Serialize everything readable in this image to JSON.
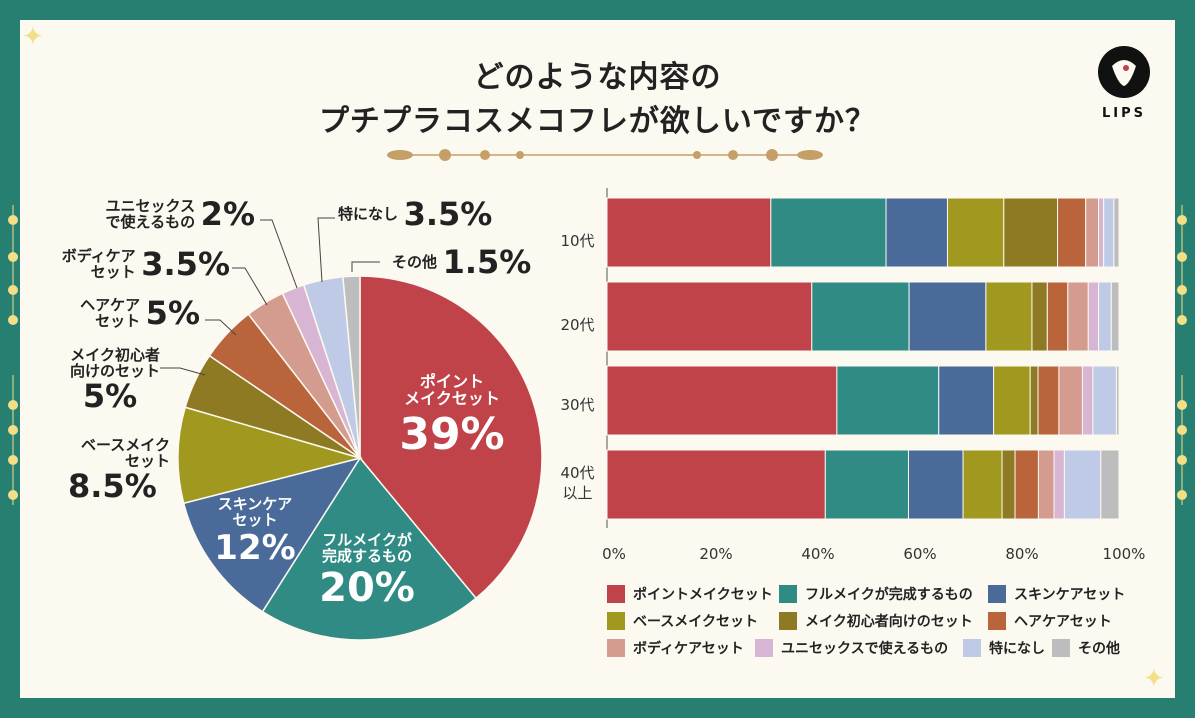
{
  "title_line1": "どのような内容の",
  "title_line2": "プチプラコスメコフレが欲しいですか？",
  "logo": "LIPS",
  "colors": {
    "point": "#c0434a",
    "full": "#2f8b84",
    "skin": "#4a6b9a",
    "base": "#a0981f",
    "beginner": "#8e7a22",
    "hair": "#b9643b",
    "body": "#d39c8f",
    "unisex": "#d8b6d3",
    "none": "#bfcbe6",
    "other": "#bdbdbd"
  },
  "pie_labels": {
    "point": {
      "l1": "ポイント",
      "l2": "メイクセット",
      "pct": "39%"
    },
    "full": {
      "l1": "フルメイクが",
      "l2": "完成するもの",
      "pct": "20%"
    },
    "skin": {
      "l1": "スキンケア",
      "l2": "セット",
      "pct": "12%"
    },
    "base": {
      "l1": "ベースメイク",
      "l2": "セット",
      "pct": "8.5%"
    },
    "beginner": {
      "l1": "メイク初心者",
      "l2": "向けのセット",
      "pct": "5%"
    },
    "hair": {
      "l1": "ヘアケア",
      "l2": "セット",
      "pct": "5%"
    },
    "body": {
      "l1": "ボディケア",
      "l2": "セット",
      "pct": "3.5%"
    },
    "unisex": {
      "l1": "ユニセックス",
      "l2": "で使えるもの",
      "pct": "2%"
    },
    "none": {
      "l1": "特になし",
      "pct": "3.5%"
    },
    "other": {
      "l1": "その他",
      "pct": "1.5%"
    }
  },
  "age_labels": {
    "a10": "10代",
    "a20": "20代",
    "a30": "30代",
    "a40_1": "40代",
    "a40_2": "以上"
  },
  "legend": {
    "point": "ポイントメイクセット",
    "full": "フルメイクが完成するもの",
    "skin": "スキンケアセット",
    "base": "ベースメイクセット",
    "beginner": "メイク初心者向けのセット",
    "hair": "ヘアケアセット",
    "body": "ボディケアセット",
    "unisex": "ユニセックスで使えるもの",
    "none": "特になし",
    "other": "その他"
  },
  "chart_data": [
    {
      "type": "pie",
      "title": "どのような内容のプチプラコスメコフレが欲しいですか？",
      "categories": [
        "ポイントメイクセット",
        "フルメイクが完成するもの",
        "スキンケアセット",
        "ベースメイクセット",
        "メイク初心者向けのセット",
        "ヘアケアセット",
        "ボディケアセット",
        "ユニセックスで使えるもの",
        "特になし",
        "その他"
      ],
      "values": [
        39,
        20,
        12,
        8.5,
        5,
        5,
        3.5,
        2,
        3.5,
        1.5
      ]
    },
    {
      "type": "bar",
      "stacked": true,
      "orientation": "horizontal",
      "categories": [
        "10代",
        "20代",
        "30代",
        "40代以上"
      ],
      "xticks": [
        "0%",
        "20%",
        "40%",
        "60%",
        "80%",
        "100%"
      ],
      "xlim": [
        0,
        100
      ],
      "series": [
        {
          "name": "ポイントメイクセット",
          "key": "point",
          "values": [
            32,
            40,
            44,
            42
          ]
        },
        {
          "name": "フルメイクが完成するもの",
          "key": "full",
          "values": [
            22.5,
            19,
            19.5,
            16
          ]
        },
        {
          "name": "スキンケアセット",
          "key": "skin",
          "values": [
            12,
            15,
            10.5,
            10.5
          ]
        },
        {
          "name": "ベースメイクセット",
          "key": "base",
          "values": [
            11,
            9,
            7,
            7.5
          ]
        },
        {
          "name": "メイク初心者向けのセット",
          "key": "beginner",
          "values": [
            10.5,
            3,
            1.5,
            2.5
          ]
        },
        {
          "name": "ヘアケアセット",
          "key": "hair",
          "values": [
            5.5,
            4,
            4,
            4.5
          ]
        },
        {
          "name": "ボディケアセット",
          "key": "body",
          "values": [
            2.5,
            4,
            4.5,
            3
          ]
        },
        {
          "name": "ユニセックスで使えるもの",
          "key": "unisex",
          "values": [
            1,
            2,
            2,
            2
          ]
        },
        {
          "name": "特になし",
          "key": "none",
          "values": [
            2,
            2.5,
            4.5,
            7
          ]
        },
        {
          "name": "その他",
          "key": "other",
          "values": [
            1,
            1.5,
            0.5,
            3.5
          ]
        }
      ]
    }
  ]
}
